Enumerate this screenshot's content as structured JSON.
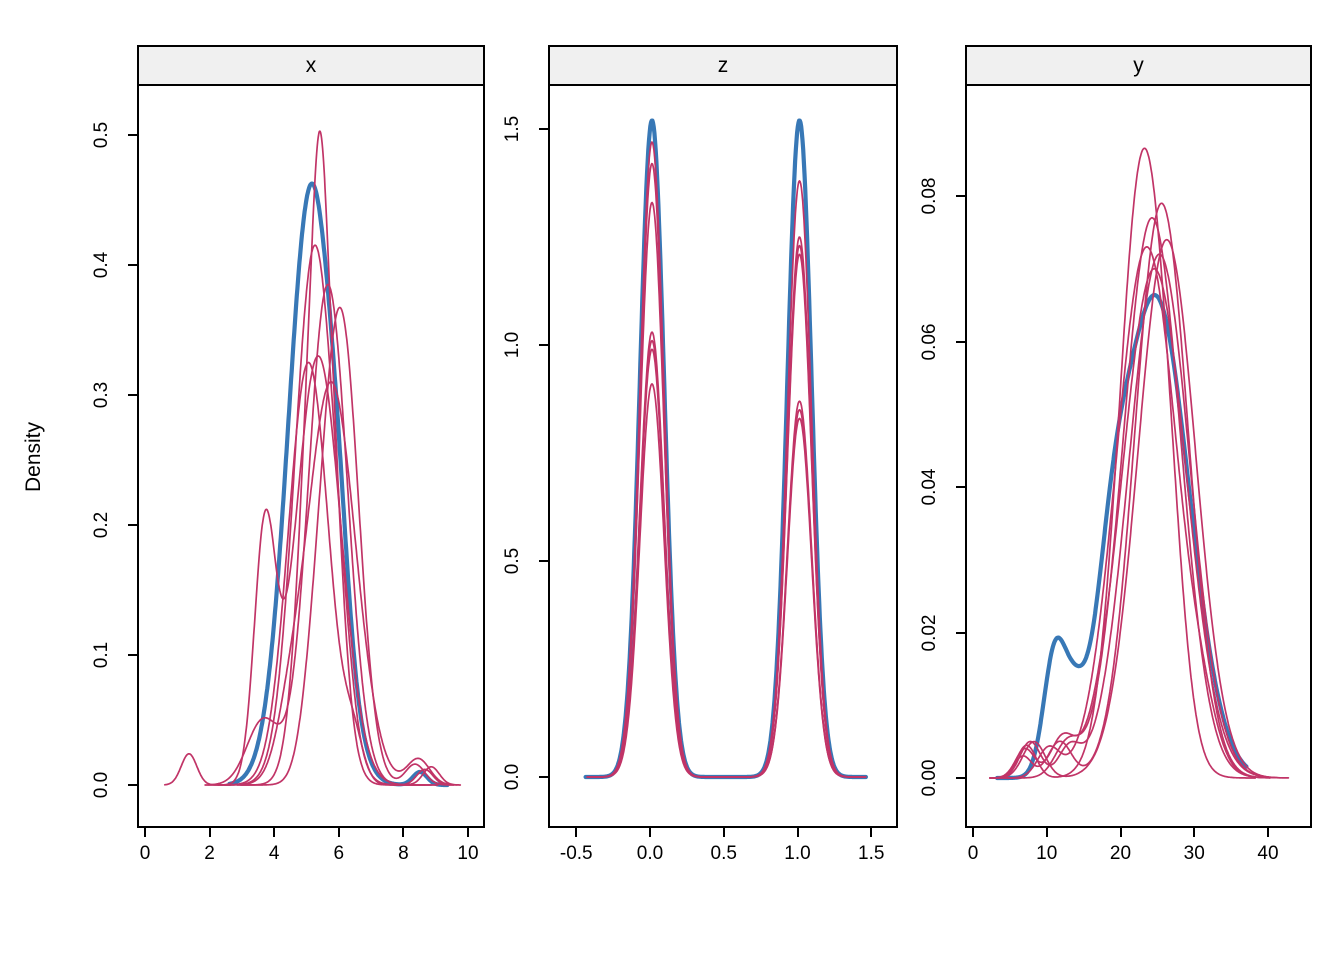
{
  "figure": {
    "ylab": "Density",
    "background": "#ffffff"
  },
  "colors": {
    "observed": "#3878b6",
    "imputed": "#c13467",
    "strip_bg": "#f0f0f0",
    "frame": "#000000",
    "tick_label": "#000000"
  },
  "line_widths": {
    "observed": 4.2,
    "imputed": 1.7
  },
  "chart_data": [
    {
      "type": "line",
      "title": "x",
      "xlabel": "",
      "ylabel": "Density",
      "xlim": [
        -0.25,
        10.53
      ],
      "ylim": [
        -0.033,
        0.538
      ],
      "grid": false,
      "legend": "none",
      "x_ticks": {
        "values": [
          0,
          2,
          4,
          6,
          8,
          10
        ],
        "labels": [
          "0",
          "2",
          "4",
          "6",
          "8",
          "10"
        ]
      },
      "y_ticks": {
        "values": [
          0.0,
          0.1,
          0.2,
          0.3,
          0.4,
          0.5
        ],
        "labels": [
          "0.0",
          "0.1",
          "0.2",
          "0.3",
          "0.4",
          "0.5"
        ]
      },
      "series": [
        {
          "name": "observed",
          "role": "observed",
          "xrange": [
            2.55,
            9.3
          ],
          "density_bumps": [
            {
              "x": 5.1,
              "height": 0.462,
              "sd": 0.72
            },
            {
              "x": 5.95,
              "height": 0.035,
              "sd": 0.3
            },
            {
              "x": 8.45,
              "height": 0.01,
              "sd": 0.22
            }
          ]
        },
        {
          "name": "imputed_1",
          "role": "imputed",
          "xrange": [
            2.8,
            9.2
          ],
          "density_bumps": [
            {
              "x": 5.35,
              "height": 0.44,
              "sd": 0.5
            },
            {
              "x": 5.35,
              "height": 0.063,
              "sd": 0.18
            },
            {
              "x": 8.6,
              "height": 0.012,
              "sd": 0.25
            }
          ]
        },
        {
          "name": "imputed_2",
          "role": "imputed",
          "xrange": [
            2.4,
            8.6
          ],
          "density_bumps": [
            {
              "x": 5.2,
              "height": 0.415,
              "sd": 0.62
            },
            {
              "x": 6.1,
              "height": 0.02,
              "sd": 0.3
            }
          ]
        },
        {
          "name": "imputed_3",
          "role": "imputed",
          "xrange": [
            1.9,
            9.0
          ],
          "density_bumps": [
            {
              "x": 5.6,
              "height": 0.385,
              "sd": 0.6
            },
            {
              "x": 3.6,
              "height": 0.05,
              "sd": 0.5
            }
          ]
        },
        {
          "name": "imputed_4",
          "role": "imputed",
          "xrange": [
            2.9,
            9.5
          ],
          "density_bumps": [
            {
              "x": 6.0,
              "height": 0.36,
              "sd": 0.55
            },
            {
              "x": 5.2,
              "height": 0.05,
              "sd": 0.4
            },
            {
              "x": 8.3,
              "height": 0.016,
              "sd": 0.3
            }
          ]
        },
        {
          "name": "imputed_5",
          "role": "imputed",
          "xrange": [
            1.8,
            9.7
          ],
          "density_bumps": [
            {
              "x": 5.3,
              "height": 0.33,
              "sd": 0.7
            },
            {
              "x": 3.65,
              "height": 0.19,
              "sd": 0.33
            },
            {
              "x": 8.8,
              "height": 0.014,
              "sd": 0.25
            }
          ]
        },
        {
          "name": "imputed_6",
          "role": "imputed",
          "xrange": [
            0.55,
            8.8
          ],
          "density_bumps": [
            {
              "x": 5.0,
              "height": 0.325,
              "sd": 0.62
            },
            {
              "x": 1.3,
              "height": 0.024,
              "sd": 0.24
            },
            {
              "x": 6.4,
              "height": 0.03,
              "sd": 0.3
            }
          ]
        },
        {
          "name": "imputed_7",
          "role": "imputed",
          "xrange": [
            2.2,
            9.6
          ],
          "density_bumps": [
            {
              "x": 5.7,
              "height": 0.31,
              "sd": 0.75
            },
            {
              "x": 4.4,
              "height": 0.03,
              "sd": 0.4
            },
            {
              "x": 8.4,
              "height": 0.02,
              "sd": 0.35
            }
          ]
        }
      ]
    },
    {
      "type": "line",
      "title": "z",
      "xlabel": "",
      "ylabel": "Density",
      "xlim": [
        -0.69,
        1.68
      ],
      "ylim": [
        -0.118,
        1.6
      ],
      "grid": false,
      "legend": "none",
      "x_ticks": {
        "values": [
          -0.5,
          0.0,
          0.5,
          1.0,
          1.5
        ],
        "labels": [
          "-0.5",
          "0.0",
          "0.5",
          "1.0",
          "1.5"
        ]
      },
      "y_ticks": {
        "values": [
          0.0,
          0.5,
          1.0,
          1.5
        ],
        "labels": [
          "0.0",
          "0.5",
          "1.0",
          "1.5"
        ]
      },
      "series": [
        {
          "name": "observed",
          "role": "observed",
          "xrange": [
            -0.45,
            1.45
          ],
          "density_bumps": [
            {
              "x": 0,
              "height": 1.52,
              "sd": 0.082
            },
            {
              "x": 1,
              "height": 1.52,
              "sd": 0.082
            }
          ]
        },
        {
          "name": "imputed_1",
          "role": "imputed",
          "xrange": [
            -0.43,
            1.43
          ],
          "density_bumps": [
            {
              "x": 0,
              "height": 1.47,
              "sd": 0.082
            },
            {
              "x": 1,
              "height": 0.83,
              "sd": 0.082
            }
          ]
        },
        {
          "name": "imputed_2",
          "role": "imputed",
          "xrange": [
            -0.44,
            1.44
          ],
          "density_bumps": [
            {
              "x": 0,
              "height": 1.42,
              "sd": 0.082
            },
            {
              "x": 1,
              "height": 0.85,
              "sd": 0.082
            }
          ]
        },
        {
          "name": "imputed_3",
          "role": "imputed",
          "xrange": [
            -0.42,
            1.42
          ],
          "density_bumps": [
            {
              "x": 0,
              "height": 1.33,
              "sd": 0.082
            },
            {
              "x": 1,
              "height": 0.87,
              "sd": 0.082
            }
          ]
        },
        {
          "name": "imputed_4",
          "role": "imputed",
          "xrange": [
            -0.43,
            1.44
          ],
          "density_bumps": [
            {
              "x": 0,
              "height": 1.03,
              "sd": 0.082
            },
            {
              "x": 1,
              "height": 1.38,
              "sd": 0.082
            }
          ]
        },
        {
          "name": "imputed_5",
          "role": "imputed",
          "xrange": [
            -0.44,
            1.43
          ],
          "density_bumps": [
            {
              "x": 0,
              "height": 1.01,
              "sd": 0.082
            },
            {
              "x": 1,
              "height": 1.25,
              "sd": 0.082
            }
          ]
        },
        {
          "name": "imputed_6",
          "role": "imputed",
          "xrange": [
            -0.42,
            1.45
          ],
          "density_bumps": [
            {
              "x": 0,
              "height": 0.99,
              "sd": 0.082
            },
            {
              "x": 1,
              "height": 1.23,
              "sd": 0.082
            }
          ]
        },
        {
          "name": "imputed_7",
          "role": "imputed",
          "xrange": [
            -0.43,
            1.42
          ],
          "density_bumps": [
            {
              "x": 0,
              "height": 0.91,
              "sd": 0.082
            },
            {
              "x": 1,
              "height": 1.21,
              "sd": 0.082
            }
          ]
        }
      ]
    },
    {
      "type": "line",
      "title": "y",
      "xlabel": "",
      "ylabel": "Density",
      "xlim": [
        -1.1,
        46.0
      ],
      "ylim": [
        -0.0069,
        0.0951
      ],
      "grid": false,
      "legend": "none",
      "x_ticks": {
        "values": [
          0,
          10,
          20,
          30,
          40
        ],
        "labels": [
          "0",
          "10",
          "20",
          "30",
          "40"
        ]
      },
      "y_ticks": {
        "values": [
          0.0,
          0.02,
          0.04,
          0.06,
          0.08
        ],
        "labels": [
          "0.00",
          "0.02",
          "0.04",
          "0.06",
          "0.08"
        ]
      },
      "series": [
        {
          "name": "observed",
          "role": "observed",
          "xrange": [
            3.0,
            36.8
          ],
          "density_bumps": [
            {
              "x": 24.5,
              "height": 0.066,
              "sd": 4.5
            },
            {
              "x": 18.5,
              "height": 0.0145,
              "sd": 2.2
            },
            {
              "x": 10.8,
              "height": 0.0165,
              "sd": 1.5
            },
            {
              "x": 13.5,
              "height": 0.008,
              "sd": 1.5
            }
          ]
        },
        {
          "name": "imputed_1",
          "role": "imputed",
          "xrange": [
            2.5,
            38.0
          ],
          "density_bumps": [
            {
              "x": 22.8,
              "height": 0.085,
              "sd": 3.2
            },
            {
              "x": 26.5,
              "height": 0.008,
              "sd": 2.0
            },
            {
              "x": 7.0,
              "height": 0.0045,
              "sd": 1.3
            }
          ]
        },
        {
          "name": "imputed_2",
          "role": "imputed",
          "xrange": [
            2.0,
            40.0
          ],
          "density_bumps": [
            {
              "x": 25.3,
              "height": 0.079,
              "sd": 3.6
            },
            {
              "x": 11.5,
              "height": 0.005,
              "sd": 1.6
            },
            {
              "x": 6.5,
              "height": 0.003,
              "sd": 1.2
            }
          ]
        },
        {
          "name": "imputed_3",
          "role": "imputed",
          "xrange": [
            2.5,
            39.0
          ],
          "density_bumps": [
            {
              "x": 24.0,
              "height": 0.077,
              "sd": 3.9
            },
            {
              "x": 12.5,
              "height": 0.0045,
              "sd": 1.7
            }
          ]
        },
        {
          "name": "imputed_4",
          "role": "imputed",
          "xrange": [
            2.0,
            41.5
          ],
          "density_bumps": [
            {
              "x": 26.0,
              "height": 0.074,
              "sd": 3.9
            },
            {
              "x": 8.0,
              "height": 0.005,
              "sd": 1.5
            }
          ]
        },
        {
          "name": "imputed_5",
          "role": "imputed",
          "xrange": [
            2.5,
            40.0
          ],
          "density_bumps": [
            {
              "x": 23.3,
              "height": 0.073,
              "sd": 4.1
            },
            {
              "x": 10.0,
              "height": 0.004,
              "sd": 1.5
            },
            {
              "x": 31.0,
              "height": 0.004,
              "sd": 2.0
            }
          ]
        },
        {
          "name": "imputed_6",
          "role": "imputed",
          "xrange": [
            2.0,
            42.5
          ],
          "density_bumps": [
            {
              "x": 25.0,
              "height": 0.072,
              "sd": 4.1
            },
            {
              "x": 7.5,
              "height": 0.005,
              "sd": 1.4
            },
            {
              "x": 12.8,
              "height": 0.004,
              "sd": 1.5
            }
          ]
        },
        {
          "name": "imputed_7",
          "role": "imputed",
          "xrange": [
            3.0,
            41.0
          ],
          "density_bumps": [
            {
              "x": 24.3,
              "height": 0.07,
              "sd": 4.3
            },
            {
              "x": 6.8,
              "height": 0.004,
              "sd": 1.3
            },
            {
              "x": 11.8,
              "height": 0.005,
              "sd": 1.6
            }
          ]
        }
      ]
    }
  ]
}
